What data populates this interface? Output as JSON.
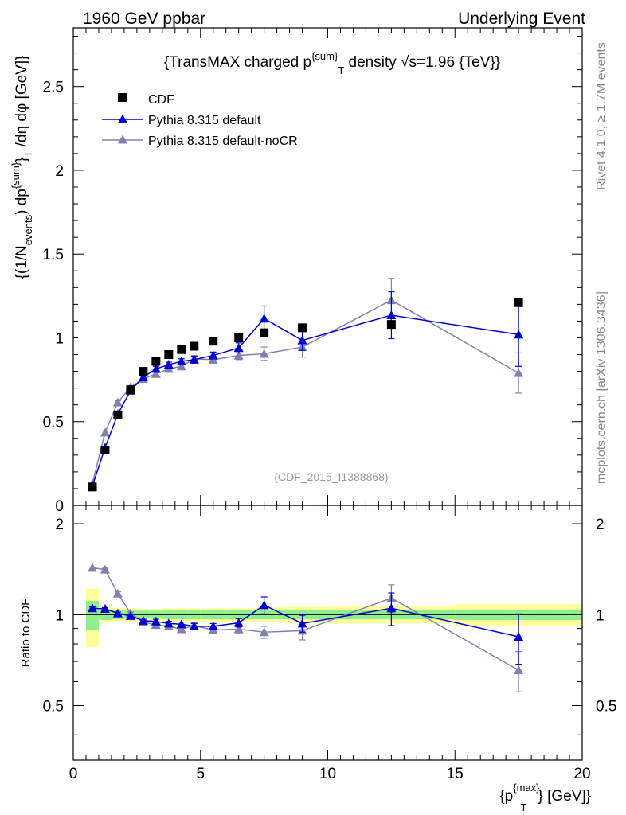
{
  "header": {
    "left": "1960 GeV ppbar",
    "right": "Underlying Event"
  },
  "side_labels": {
    "rivet": "Rivet 4.1.0, ≥ 1.7M events",
    "mcplots": "mcplots.cern.ch [arXiv:1306.3436]"
  },
  "watermark": "(CDF_2015_I1388868)",
  "colors": {
    "data": "#000000",
    "default": "#0000cc",
    "nocr": "#8080b0",
    "band_inner": "#90ee90",
    "band_outer": "#ffff99"
  },
  "chart_data": [
    {
      "type": "scatter",
      "name": "main",
      "title": "{TransMAX charged p^{sum}_T density √s=1.96 {TeV}}",
      "title_parts": {
        "a": "{TransMAX charged p",
        "sup": "{sum}",
        "sub": "T",
        "b": " density ",
        "sqrt": "√",
        "c": "s=1.96 {TeV}}"
      },
      "ylabel": "{(1/N_events) dp^{sum}_T /dη dφ [GeV]}",
      "ylabel_parts": {
        "a": "{(1/N",
        "sub1": "events",
        "b": ") dp",
        "sup": "{sum}",
        "c": "}",
        "sub2": "T",
        "d": " /dη  dφ [GeV]}"
      },
      "xlim": [
        0,
        20
      ],
      "ylim": [
        0,
        2.85
      ],
      "yticks": [
        "0.5",
        "1",
        "1.5",
        "2",
        "2.5"
      ],
      "ytick_values": [
        0.5,
        1,
        1.5,
        2,
        2.5
      ],
      "ytick_zero": "0",
      "legend": [
        "CDF",
        "Pythia 8.315 default",
        "Pythia 8.315 default-noCR"
      ],
      "series": [
        {
          "name": "CDF",
          "x": [
            0.75,
            1.25,
            1.75,
            2.25,
            2.75,
            3.25,
            3.75,
            4.25,
            4.75,
            5.5,
            6.5,
            7.5,
            9.0,
            12.5,
            17.5
          ],
          "y": [
            0.11,
            0.33,
            0.54,
            0.69,
            0.8,
            0.86,
            0.9,
            0.93,
            0.95,
            0.98,
            1.0,
            1.03,
            1.06,
            1.08,
            1.21
          ]
        },
        {
          "name": "Pythia 8.315 default",
          "x": [
            0.75,
            1.25,
            1.75,
            2.25,
            2.75,
            3.25,
            3.75,
            4.25,
            4.75,
            5.5,
            6.5,
            7.5,
            9.0,
            12.5,
            17.5
          ],
          "y": [
            0.115,
            0.345,
            0.545,
            0.685,
            0.765,
            0.815,
            0.84,
            0.86,
            0.87,
            0.895,
            0.94,
            1.115,
            0.985,
            1.135,
            1.02
          ],
          "err": [
            0.005,
            0.005,
            0.01,
            0.01,
            0.01,
            0.015,
            0.015,
            0.015,
            0.02,
            0.02,
            0.03,
            0.075,
            0.06,
            0.14,
            0.19
          ]
        },
        {
          "name": "Pythia 8.315 default-noCR",
          "x": [
            0.75,
            1.25,
            1.75,
            2.25,
            2.75,
            3.25,
            3.75,
            4.25,
            4.75,
            5.5,
            6.5,
            7.5,
            9.0,
            12.5,
            17.5
          ],
          "y": [
            0.13,
            0.435,
            0.615,
            0.705,
            0.755,
            0.785,
            0.815,
            0.83,
            0.875,
            0.87,
            0.895,
            0.905,
            0.945,
            1.225,
            0.79
          ],
          "err": [
            0.005,
            0.01,
            0.01,
            0.01,
            0.01,
            0.015,
            0.015,
            0.02,
            0.02,
            0.02,
            0.025,
            0.04,
            0.06,
            0.13,
            0.12
          ]
        }
      ]
    },
    {
      "type": "scatter",
      "name": "ratio",
      "ylabel": "Ratio to CDF",
      "xlabel": "{p_T^{max}} [GeV]}",
      "xlabel_parts": {
        "a": "{p",
        "sup": "{max}",
        "sub": "T",
        "b": "} [GeV]}"
      },
      "xlim": [
        0,
        20
      ],
      "ylim": [
        0.33,
        2.3
      ],
      "xticks": [
        "0",
        "5",
        "10",
        "15",
        "20"
      ],
      "xtick_values": [
        0,
        5,
        10,
        15,
        20
      ],
      "yticks": [
        "0.5",
        "1",
        "2"
      ],
      "ytick_values": [
        0.5,
        1,
        2
      ],
      "bin_edges": [
        0.5,
        1.0,
        1.5,
        2.0,
        2.5,
        3.0,
        3.5,
        4.0,
        4.5,
        5.0,
        6.0,
        7.0,
        8.0,
        10.0,
        15.0,
        20.0
      ],
      "band_inner": [
        0.11,
        0.04,
        0.035,
        0.03,
        0.03,
        0.03,
        0.035,
        0.035,
        0.035,
        0.035,
        0.035,
        0.035,
        0.035,
        0.035,
        0.04
      ],
      "band_outer": [
        0.22,
        0.06,
        0.05,
        0.05,
        0.045,
        0.045,
        0.05,
        0.05,
        0.05,
        0.05,
        0.05,
        0.055,
        0.06,
        0.065,
        0.085
      ],
      "series": [
        {
          "name": "Pythia 8.315 default",
          "x": [
            0.75,
            1.25,
            1.75,
            2.25,
            2.75,
            3.25,
            3.75,
            4.25,
            4.75,
            5.5,
            6.5,
            7.5,
            9.0,
            12.5,
            17.5
          ],
          "y": [
            1.05,
            1.045,
            1.01,
            0.99,
            0.955,
            0.95,
            0.935,
            0.93,
            0.915,
            0.915,
            0.94,
            1.075,
            0.935,
            1.05,
            0.845
          ],
          "err": [
            0.01,
            0.01,
            0.01,
            0.01,
            0.01,
            0.015,
            0.015,
            0.015,
            0.02,
            0.02,
            0.03,
            0.07,
            0.06,
            0.13,
            0.16
          ]
        },
        {
          "name": "Pythia 8.315 default-noCR",
          "x": [
            0.75,
            1.25,
            1.75,
            2.25,
            2.75,
            3.25,
            3.75,
            4.25,
            4.75,
            5.5,
            6.5,
            7.5,
            9.0,
            12.5,
            17.5
          ],
          "y": [
            1.43,
            1.41,
            1.175,
            1.01,
            0.945,
            0.925,
            0.915,
            0.895,
            0.92,
            0.89,
            0.895,
            0.875,
            0.885,
            1.135,
            0.655
          ],
          "err": [
            0.01,
            0.015,
            0.015,
            0.01,
            0.01,
            0.015,
            0.015,
            0.02,
            0.02,
            0.02,
            0.025,
            0.04,
            0.06,
            0.12,
            0.1
          ]
        }
      ]
    }
  ]
}
